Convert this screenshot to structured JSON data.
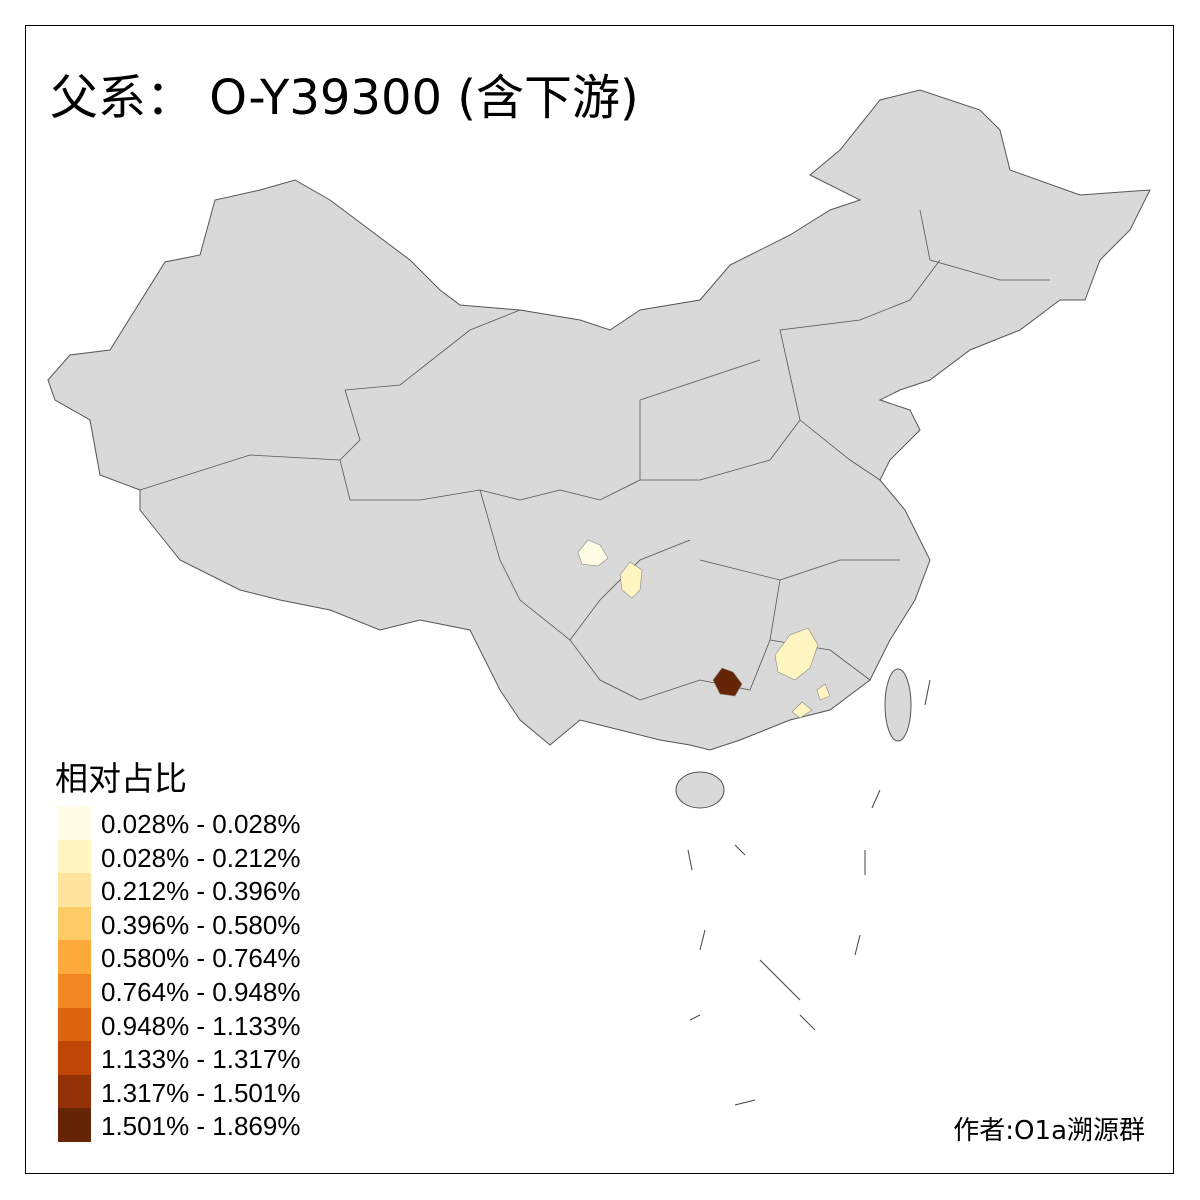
{
  "title": "父系： O-Y39300 (含下游)",
  "base_color": "#d9d9d9",
  "legend": {
    "title": "相对占比",
    "items": [
      {
        "label": "0.028% - 0.028%",
        "color": "#fffde6"
      },
      {
        "label": "0.028% - 0.212%",
        "color": "#fef5c0"
      },
      {
        "label": "0.212% - 0.396%",
        "color": "#fee49c"
      },
      {
        "label": "0.396% - 0.580%",
        "color": "#fecc66"
      },
      {
        "label": "0.580% - 0.764%",
        "color": "#fdaa3a"
      },
      {
        "label": "0.764% - 0.948%",
        "color": "#f18723"
      },
      {
        "label": "0.948% - 1.133%",
        "color": "#de6510"
      },
      {
        "label": "1.133% - 1.317%",
        "color": "#bf4605"
      },
      {
        "label": "1.317% - 1.501%",
        "color": "#933106"
      },
      {
        "label": "1.501% - 1.869%",
        "color": "#662506"
      }
    ]
  },
  "credit": "作者:O1a溯源群"
}
